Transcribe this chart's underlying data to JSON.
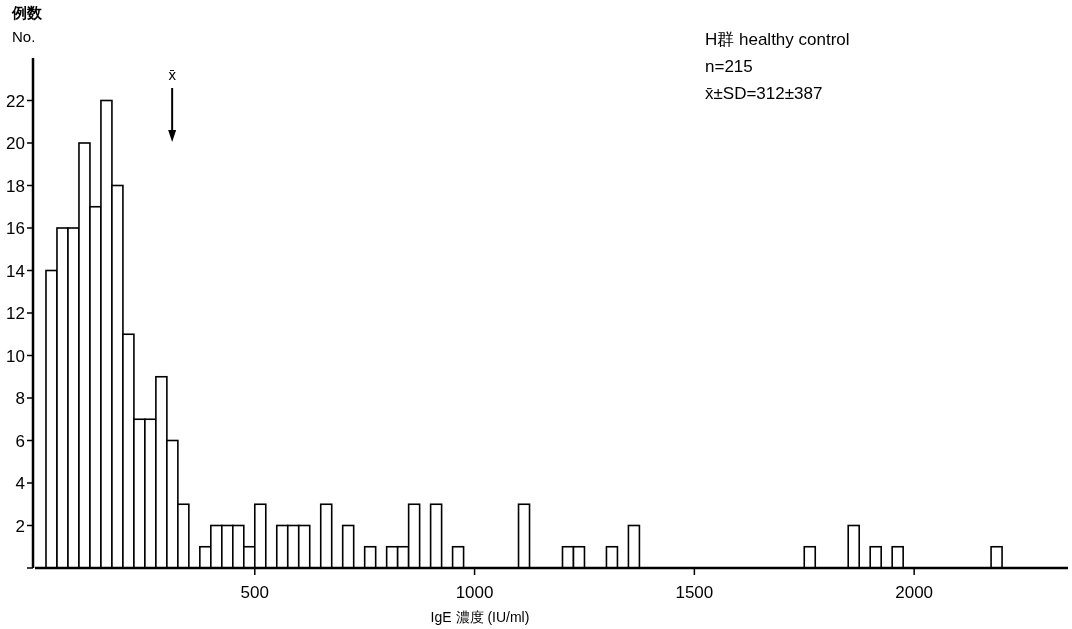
{
  "chart_data": {
    "type": "histogram",
    "xlabel": "IgE 濃度 (IU/ml)",
    "ylabel": "例数\nNo.",
    "bins": [
      25,
      50,
      75,
      100,
      125,
      150,
      175,
      200,
      225,
      250,
      275,
      300,
      325,
      350,
      375,
      400,
      425,
      450,
      475,
      500,
      525,
      550,
      575,
      600,
      625,
      650,
      675,
      700,
      725,
      750,
      775,
      800,
      825,
      850,
      875,
      900,
      925,
      950,
      975,
      1000,
      1025,
      1050,
      1075,
      1100,
      1125,
      1150,
      1175,
      1200,
      1225,
      1250,
      1275,
      1300,
      1325,
      1350,
      1375,
      1400,
      1425,
      1450,
      1475,
      1500,
      1525,
      1550,
      1575,
      1600,
      1625,
      1650,
      1675,
      1700,
      1725,
      1750,
      1775,
      1800,
      1825,
      1850,
      1875,
      1900,
      1925,
      1950,
      1975,
      2000,
      2025,
      2050,
      2075,
      2100,
      2125,
      2150,
      2175,
      2200
    ],
    "values": [
      14,
      16,
      16,
      20,
      17,
      22,
      18,
      11,
      7,
      7,
      9,
      6,
      3,
      0,
      1,
      2,
      2,
      2,
      1,
      3,
      0,
      2,
      2,
      2,
      0,
      3,
      0,
      2,
      0,
      1,
      0,
      1,
      1,
      3,
      0,
      3,
      0,
      1,
      0,
      0,
      0,
      0,
      0,
      3,
      0,
      0,
      0,
      1,
      1,
      0,
      0,
      1,
      0,
      2,
      0,
      0,
      0,
      0,
      0,
      0,
      0,
      0,
      0,
      0,
      0,
      0,
      0,
      0,
      0,
      1,
      0,
      0,
      0,
      2,
      0,
      1,
      0,
      1,
      0,
      0,
      0,
      0,
      0,
      0,
      0,
      0,
      1
    ],
    "color": "#ffffff",
    "xlim": [
      0,
      2350
    ],
    "ylim": [
      0,
      24
    ],
    "xticks": [
      500,
      1000,
      1500,
      2000
    ],
    "yticks": [
      {
        "value": 0,
        "label": null
      },
      2,
      4,
      6,
      8,
      10,
      12,
      14,
      16,
      18,
      20,
      22
    ],
    "grid": false,
    "ref_lines": [
      {
        "axis": "x",
        "value": 312,
        "label": "x̄"
      }
    ],
    "annotations": [
      "H群 healthy control",
      "n=215",
      "x̄±SD=312±387"
    ]
  }
}
